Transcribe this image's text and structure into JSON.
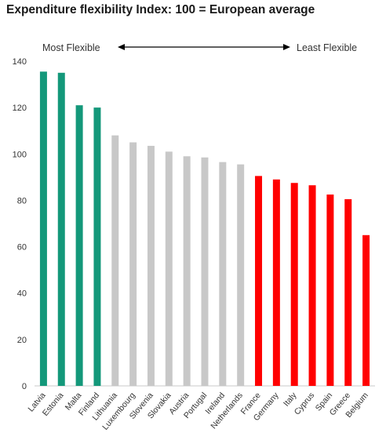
{
  "chart_data": {
    "type": "bar",
    "title": "Expenditure flexibility Index: 100 = European average",
    "categories": [
      "Latvia",
      "Estonia",
      "Malta",
      "Finland",
      "Lithuania",
      "Luxembourg",
      "Slovenia",
      "Slovakia",
      "Austria",
      "Portugal",
      "Ireland",
      "Netherlands",
      "France",
      "Germany",
      "Italy",
      "Cyprus",
      "Spain",
      "Greece",
      "Belgium"
    ],
    "values": [
      135.5,
      135,
      121,
      120,
      108,
      105,
      103.5,
      101,
      99,
      98.5,
      96.5,
      95.5,
      90.5,
      89,
      87.5,
      86.5,
      82.5,
      80.5,
      65
    ],
    "groups": [
      {
        "name": "most",
        "color": "#14987a",
        "count": 4
      },
      {
        "name": "middle",
        "color": "#c8c8c8",
        "count": 8
      },
      {
        "name": "least",
        "color": "#ff0000",
        "count": 7
      }
    ],
    "ylim": [
      0,
      140
    ],
    "yticks": [
      0,
      20,
      40,
      60,
      80,
      100,
      120,
      140
    ],
    "xlabel": "",
    "ylabel": "",
    "grid": false,
    "annotation_left": "Most Flexible",
    "annotation_right": "Least Flexible"
  }
}
